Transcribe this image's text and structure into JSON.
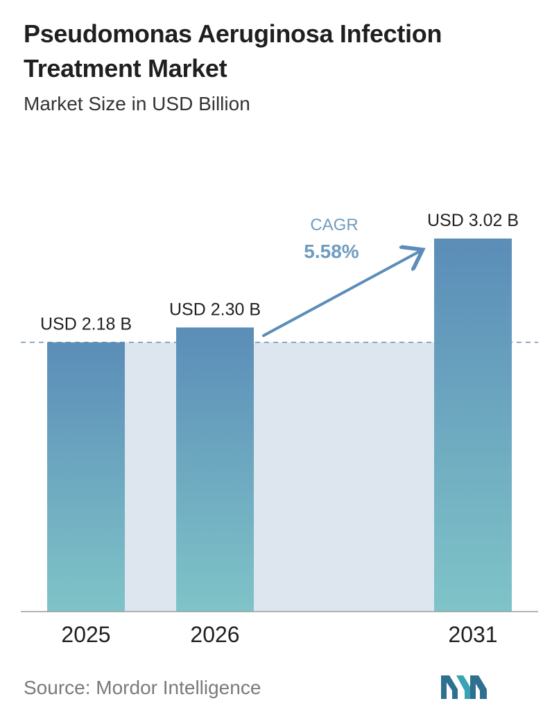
{
  "title": "Pseudomonas Aeruginosa Infection Treatment Market",
  "subtitle": "Market Size in USD Billion",
  "source": "Source:  Mordor Intelligence",
  "colors": {
    "bar_top": "#5b8db8",
    "bar_bottom": "#7fc4c8",
    "band": "#dde6ef",
    "arrow": "#5b8db8",
    "cagr_label": "#6e9cc0"
  },
  "chart_data": {
    "type": "bar",
    "categories": [
      "2025",
      "2026",
      "2031"
    ],
    "values": [
      2.18,
      2.3,
      3.02
    ],
    "data_labels": [
      "USD 2.18 B",
      "USD 2.30 B",
      "USD 3.02 B"
    ],
    "ylim": [
      0,
      3.02
    ],
    "grid": false,
    "reference_line": 2.18,
    "annotation": {
      "label": "CAGR",
      "value": "5.58%"
    }
  }
}
